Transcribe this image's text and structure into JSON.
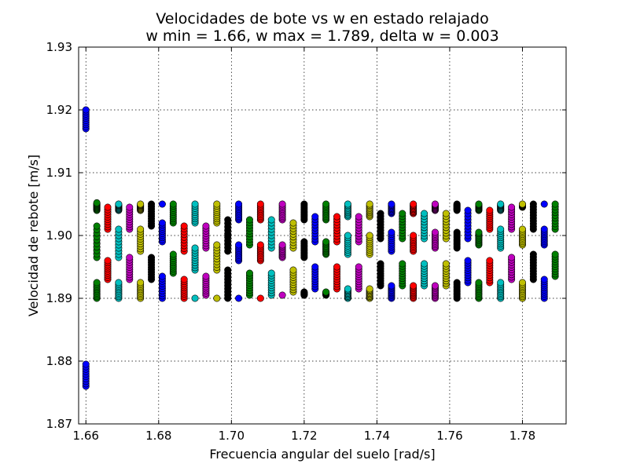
{
  "chart_data": {
    "type": "scatter",
    "title": "Velocidades de bote vs w en estado relajado",
    "subtitle": "w min = 1.66, w max = 1.789, delta w = 0.003",
    "xlabel": "Frecuencia angular del suelo [rad/s]",
    "ylabel": "Velocidad de rebote [m/s]",
    "xlim": [
      1.658,
      1.792
    ],
    "ylim": [
      1.87,
      1.93
    ],
    "xticks": [
      "1.66",
      "1.68",
      "1.70",
      "1.72",
      "1.74",
      "1.76",
      "1.78"
    ],
    "yticks": [
      "1.87",
      "1.88",
      "1.89",
      "1.90",
      "1.91",
      "1.92",
      "1.93"
    ],
    "grid": true,
    "marker": "circle",
    "color_cycle": [
      "#0000ff",
      "#008000",
      "#ff0000",
      "#00bfbf",
      "#bf00bf",
      "#bfbf00",
      "#000000"
    ],
    "points_per_segment": 10,
    "columns": [
      {
        "x": 1.66,
        "segments": [
          [
            1.917,
            1.92
          ],
          [
            1.876,
            1.8795
          ]
        ]
      },
      {
        "x": 1.663,
        "segments": [
          [
            1.904,
            1.9052
          ],
          [
            1.8965,
            1.9015
          ],
          [
            1.89,
            1.8925
          ]
        ]
      },
      {
        "x": 1.666,
        "segments": [
          [
            1.901,
            1.9045
          ],
          [
            1.893,
            1.896
          ]
        ]
      },
      {
        "x": 1.669,
        "segments": [
          [
            1.904,
            1.905
          ],
          [
            1.8965,
            1.901
          ],
          [
            1.89,
            1.8925
          ]
        ]
      },
      {
        "x": 1.672,
        "segments": [
          [
            1.901,
            1.9045
          ],
          [
            1.893,
            1.8965
          ]
        ]
      },
      {
        "x": 1.675,
        "segments": [
          [
            1.904,
            1.905
          ],
          [
            1.8975,
            1.901
          ],
          [
            1.89,
            1.8925
          ]
        ]
      },
      {
        "x": 1.678,
        "segments": [
          [
            1.9015,
            1.905
          ],
          [
            1.893,
            1.8965
          ]
        ]
      },
      {
        "x": 1.681,
        "segments": [
          [
            1.905,
            1.905
          ],
          [
            1.899,
            1.902
          ],
          [
            1.89,
            1.8935
          ]
        ]
      },
      {
        "x": 1.684,
        "segments": [
          [
            1.902,
            1.905
          ],
          [
            1.894,
            1.897
          ]
        ]
      },
      {
        "x": 1.687,
        "segments": [
          [
            1.8975,
            1.9015
          ],
          [
            1.89,
            1.893
          ]
        ]
      },
      {
        "x": 1.69,
        "segments": [
          [
            1.902,
            1.905
          ],
          [
            1.8945,
            1.898
          ],
          [
            1.89,
            1.89
          ]
        ]
      },
      {
        "x": 1.693,
        "segments": [
          [
            1.898,
            1.9015
          ],
          [
            1.8905,
            1.8935
          ]
        ]
      },
      {
        "x": 1.696,
        "segments": [
          [
            1.902,
            1.905
          ],
          [
            1.8945,
            1.8985
          ],
          [
            1.89,
            1.89
          ]
        ]
      },
      {
        "x": 1.699,
        "segments": [
          [
            1.8975,
            1.9025
          ],
          [
            1.89,
            1.8945
          ]
        ]
      },
      {
        "x": 1.702,
        "segments": [
          [
            1.9025,
            1.905
          ],
          [
            1.896,
            1.8985
          ],
          [
            1.89,
            1.89
          ]
        ]
      },
      {
        "x": 1.705,
        "segments": [
          [
            1.8985,
            1.9025
          ],
          [
            1.8905,
            1.894
          ]
        ]
      },
      {
        "x": 1.708,
        "segments": [
          [
            1.9025,
            1.905
          ],
          [
            1.896,
            1.8985
          ],
          [
            1.89,
            1.89
          ]
        ]
      },
      {
        "x": 1.711,
        "segments": [
          [
            1.898,
            1.9025
          ],
          [
            1.8905,
            1.894
          ]
        ]
      },
      {
        "x": 1.714,
        "segments": [
          [
            1.9025,
            1.905
          ],
          [
            1.8965,
            1.8985
          ],
          [
            1.8905,
            1.8905
          ]
        ]
      },
      {
        "x": 1.717,
        "segments": [
          [
            1.898,
            1.902
          ],
          [
            1.891,
            1.8945
          ]
        ]
      },
      {
        "x": 1.72,
        "segments": [
          [
            1.9025,
            1.905
          ],
          [
            1.8965,
            1.899
          ],
          [
            1.8905,
            1.891
          ]
        ]
      },
      {
        "x": 1.723,
        "segments": [
          [
            1.899,
            1.903
          ],
          [
            1.8915,
            1.895
          ]
        ]
      },
      {
        "x": 1.726,
        "segments": [
          [
            1.9025,
            1.905
          ],
          [
            1.897,
            1.899
          ],
          [
            1.8905,
            1.891
          ]
        ]
      },
      {
        "x": 1.729,
        "segments": [
          [
            1.899,
            1.903
          ],
          [
            1.8915,
            1.895
          ]
        ]
      },
      {
        "x": 1.732,
        "segments": [
          [
            1.903,
            1.905
          ],
          [
            1.897,
            1.9
          ],
          [
            1.89,
            1.8915
          ]
        ]
      },
      {
        "x": 1.735,
        "segments": [
          [
            1.899,
            1.903
          ],
          [
            1.8915,
            1.895
          ]
        ]
      },
      {
        "x": 1.738,
        "segments": [
          [
            1.903,
            1.905
          ],
          [
            1.897,
            1.9
          ],
          [
            1.89,
            1.8915
          ]
        ]
      },
      {
        "x": 1.741,
        "segments": [
          [
            1.8995,
            1.9035
          ],
          [
            1.892,
            1.8955
          ]
        ]
      },
      {
        "x": 1.744,
        "segments": [
          [
            1.9035,
            1.905
          ],
          [
            1.8975,
            1.9005
          ],
          [
            1.89,
            1.892
          ]
        ]
      },
      {
        "x": 1.747,
        "segments": [
          [
            1.8995,
            1.9035
          ],
          [
            1.892,
            1.8955
          ]
        ]
      },
      {
        "x": 1.75,
        "segments": [
          [
            1.9035,
            1.905
          ],
          [
            1.8975,
            1.9
          ],
          [
            1.89,
            1.892
          ]
        ]
      },
      {
        "x": 1.753,
        "segments": [
          [
            1.8995,
            1.9035
          ],
          [
            1.892,
            1.8955
          ]
        ]
      },
      {
        "x": 1.756,
        "segments": [
          [
            1.904,
            1.905
          ],
          [
            1.898,
            1.9005
          ],
          [
            1.89,
            1.892
          ]
        ]
      },
      {
        "x": 1.759,
        "segments": [
          [
            1.8995,
            1.9035
          ],
          [
            1.892,
            1.8955
          ]
        ]
      },
      {
        "x": 1.762,
        "segments": [
          [
            1.904,
            1.905
          ],
          [
            1.898,
            1.9005
          ],
          [
            1.89,
            1.8925
          ]
        ]
      },
      {
        "x": 1.765,
        "segments": [
          [
            1.8995,
            1.904
          ],
          [
            1.8925,
            1.896
          ]
        ]
      },
      {
        "x": 1.768,
        "segments": [
          [
            1.904,
            1.905
          ],
          [
            1.8985,
            1.9005
          ],
          [
            1.89,
            1.8925
          ]
        ]
      },
      {
        "x": 1.771,
        "segments": [
          [
            1.901,
            1.904
          ],
          [
            1.8925,
            1.896
          ]
        ]
      },
      {
        "x": 1.774,
        "segments": [
          [
            1.904,
            1.905
          ],
          [
            1.898,
            1.901
          ],
          [
            1.89,
            1.8925
          ]
        ]
      },
      {
        "x": 1.777,
        "segments": [
          [
            1.901,
            1.9045
          ],
          [
            1.893,
            1.8965
          ]
        ]
      },
      {
        "x": 1.78,
        "segments": [
          [
            1.9045,
            1.905
          ],
          [
            1.8985,
            1.901
          ],
          [
            1.89,
            1.8925
          ]
        ]
      },
      {
        "x": 1.783,
        "segments": [
          [
            1.901,
            1.905
          ],
          [
            1.893,
            1.897
          ]
        ]
      },
      {
        "x": 1.786,
        "segments": [
          [
            1.905,
            1.905
          ],
          [
            1.8985,
            1.901
          ],
          [
            1.89,
            1.893
          ]
        ]
      },
      {
        "x": 1.789,
        "segments": [
          [
            1.901,
            1.905
          ],
          [
            1.8935,
            1.897
          ]
        ]
      }
    ]
  }
}
